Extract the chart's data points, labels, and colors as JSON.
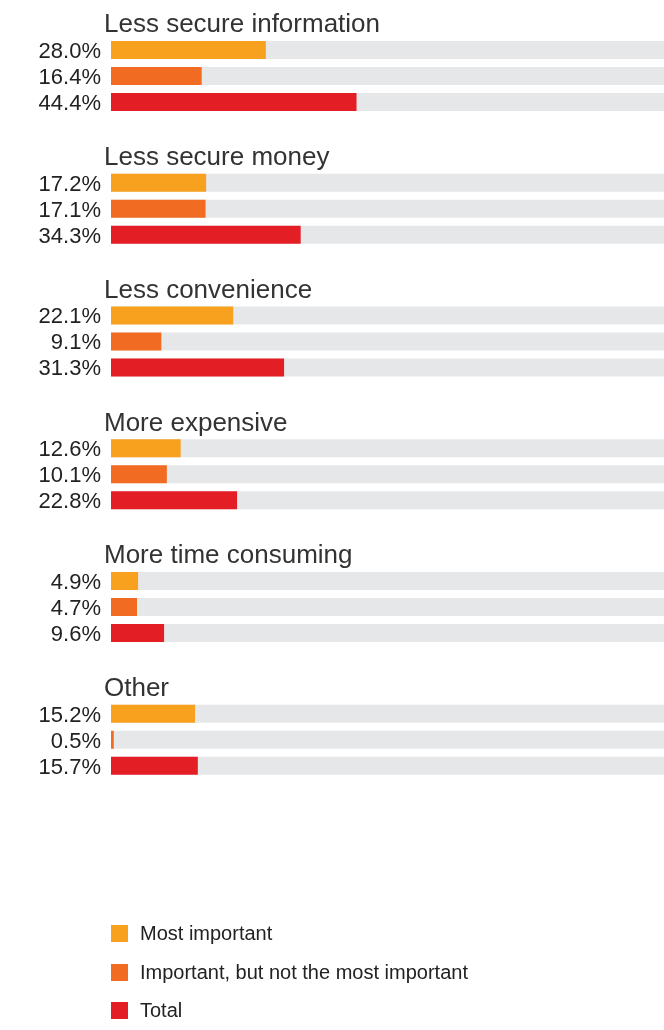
{
  "chart_data": {
    "type": "bar",
    "orientation": "horizontal",
    "categories": [
      "Less secure information",
      "Less secure money",
      "Less convenience",
      "More expensive",
      "More time consuming",
      "Other"
    ],
    "series": [
      {
        "name": "Most important",
        "color": "#f7a11f",
        "values": [
          28.0,
          17.2,
          22.1,
          12.6,
          4.9,
          15.2
        ],
        "value_labels": [
          "28.0%",
          "17.2%",
          "22.1%",
          "12.6%",
          "4.9%",
          "15.2%"
        ]
      },
      {
        "name": "Important, but not the most important",
        "color": "#f26b22",
        "values": [
          16.4,
          17.1,
          9.1,
          10.1,
          4.7,
          0.5
        ],
        "value_labels": [
          "16.4%",
          "17.1%",
          "9.1%",
          "10.1%",
          "4.7%",
          "0.5%"
        ]
      },
      {
        "name": "Total",
        "color": "#e31e24",
        "values": [
          44.4,
          34.3,
          31.3,
          22.8,
          9.6,
          15.7
        ],
        "value_labels": [
          "44.4%",
          "34.3%",
          "31.3%",
          "22.8%",
          "9.6%",
          "15.7%"
        ]
      }
    ],
    "xlim": [
      0,
      100
    ],
    "legend": "bottom left"
  }
}
